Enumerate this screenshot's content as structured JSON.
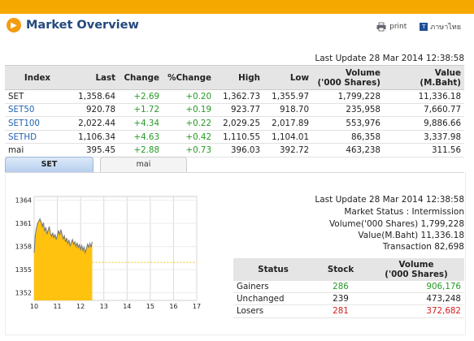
{
  "header": {
    "title": "Market Overview",
    "print_label": "print",
    "language_label": "ภาษาไทย"
  },
  "last_update": "Last Update 28 Mar 2014 12:38:58",
  "index_table": {
    "columns": [
      "Index",
      "Last",
      "Change",
      "%Change",
      "High",
      "Low",
      "Volume\n('000 Shares)",
      "Value\n(M.Baht)"
    ],
    "rows": [
      {
        "index": "SET",
        "last": "1,358.64",
        "change": "+2.69",
        "pct": "+0.20",
        "high": "1,362.73",
        "low": "1,355.97",
        "volume": "1,799,228",
        "value": "11,336.18"
      },
      {
        "index": "SET50",
        "last": "920.78",
        "change": "+1.72",
        "pct": "+0.19",
        "high": "923.77",
        "low": "918.70",
        "volume": "235,958",
        "value": "7,660.77"
      },
      {
        "index": "SET100",
        "last": "2,022.44",
        "change": "+4.34",
        "pct": "+0.22",
        "high": "2,029.25",
        "low": "2,017.89",
        "volume": "553,976",
        "value": "9,886.66"
      },
      {
        "index": "SETHD",
        "last": "1,106.34",
        "change": "+4.63",
        "pct": "+0.42",
        "high": "1,110.55",
        "low": "1,104.01",
        "volume": "86,358",
        "value": "3,337.98"
      },
      {
        "index": "mai",
        "last": "395.45",
        "change": "+2.88",
        "pct": "+0.73",
        "high": "396.03",
        "low": "392.72",
        "volume": "463,238",
        "value": "311.56"
      }
    ]
  },
  "tabs": [
    "SET",
    "mai"
  ],
  "summary": {
    "last_update": "Last Update 28 Mar 2014 12:38:58",
    "market_status": "Market Status : Intermission",
    "volume": "Volume('000 Shares) 1,799,228",
    "value": "Value(M.Baht) 11,336.18",
    "transaction": "Transaction 82,698"
  },
  "status_table": {
    "columns": [
      "Status",
      "Stock",
      "Volume\n('000 Shares)"
    ],
    "rows": [
      {
        "status": "Gainers",
        "stock": "286",
        "volume": "906,176",
        "color": "#259a25"
      },
      {
        "status": "Unchanged",
        "stock": "239",
        "volume": "473,248",
        "color": "#222222"
      },
      {
        "status": "Losers",
        "stock": "281",
        "volume": "372,682",
        "color": "#d41c1c"
      }
    ]
  },
  "colors": {
    "accent": "#f5a800",
    "area_fill": "#ffc20e",
    "title": "#24497c"
  },
  "chart_data": {
    "type": "area",
    "x_ticks": [
      "10",
      "11",
      "12",
      "13",
      "14",
      "15",
      "16",
      "17"
    ],
    "y_ticks": [
      "1364",
      "1361",
      "1358",
      "1355",
      "1352"
    ],
    "xlim": [
      10,
      17
    ],
    "ylim": [
      1351,
      1364.5
    ],
    "reference_line": 1355.95,
    "x": [
      10.0,
      10.05,
      10.1,
      10.15,
      10.2,
      10.25,
      10.3,
      10.35,
      10.4,
      10.45,
      10.5,
      10.55,
      10.6,
      10.65,
      10.7,
      10.75,
      10.8,
      10.85,
      10.9,
      10.95,
      11.0,
      11.05,
      11.1,
      11.15,
      11.2,
      11.25,
      11.3,
      11.35,
      11.4,
      11.45,
      11.5,
      11.55,
      11.6,
      11.65,
      11.7,
      11.75,
      11.8,
      11.85,
      11.9,
      11.95,
      12.0,
      12.05,
      12.1,
      12.15,
      12.2,
      12.25,
      12.3,
      12.35,
      12.4,
      12.45,
      12.5
    ],
    "y": [
      1357.2,
      1359.5,
      1360.4,
      1361.0,
      1361.3,
      1361.6,
      1361.2,
      1360.6,
      1361.1,
      1360.0,
      1360.5,
      1359.6,
      1360.1,
      1360.6,
      1359.7,
      1359.3,
      1359.8,
      1359.1,
      1359.6,
      1358.9,
      1359.4,
      1360.1,
      1359.5,
      1360.2,
      1359.6,
      1359.0,
      1359.4,
      1358.6,
      1359.1,
      1358.4,
      1358.8,
      1358.1,
      1358.5,
      1358.9,
      1358.3,
      1358.6,
      1358.0,
      1358.5,
      1357.8,
      1358.3,
      1357.6,
      1358.1,
      1357.5,
      1357.9,
      1357.2,
      1357.7,
      1358.3,
      1357.9,
      1358.4,
      1357.9,
      1358.6
    ]
  }
}
